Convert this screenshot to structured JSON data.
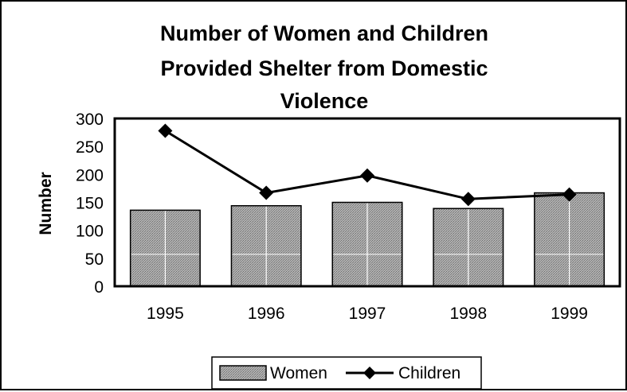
{
  "chart_data": {
    "type": "bar",
    "title_lines": [
      "Number of Women and Children",
      "Provided Shelter from Domestic",
      "Violence"
    ],
    "xlabel": "",
    "ylabel": "Number",
    "ylim": [
      0,
      300
    ],
    "yticks": [
      0,
      50,
      100,
      150,
      200,
      250,
      300
    ],
    "categories": [
      "1995",
      "1996",
      "1997",
      "1998",
      "1999"
    ],
    "series": [
      {
        "name": "Women",
        "type": "bar",
        "values": [
          136,
          144,
          150,
          139,
          167
        ]
      },
      {
        "name": "Children",
        "type": "line",
        "values": [
          278,
          167,
          198,
          156,
          164
        ]
      }
    ],
    "grid": false,
    "legend_position": "bottom",
    "colors": {
      "bar_fill": "#a6a6a6",
      "bar_stroke": "#000000",
      "line": "#000000"
    }
  }
}
